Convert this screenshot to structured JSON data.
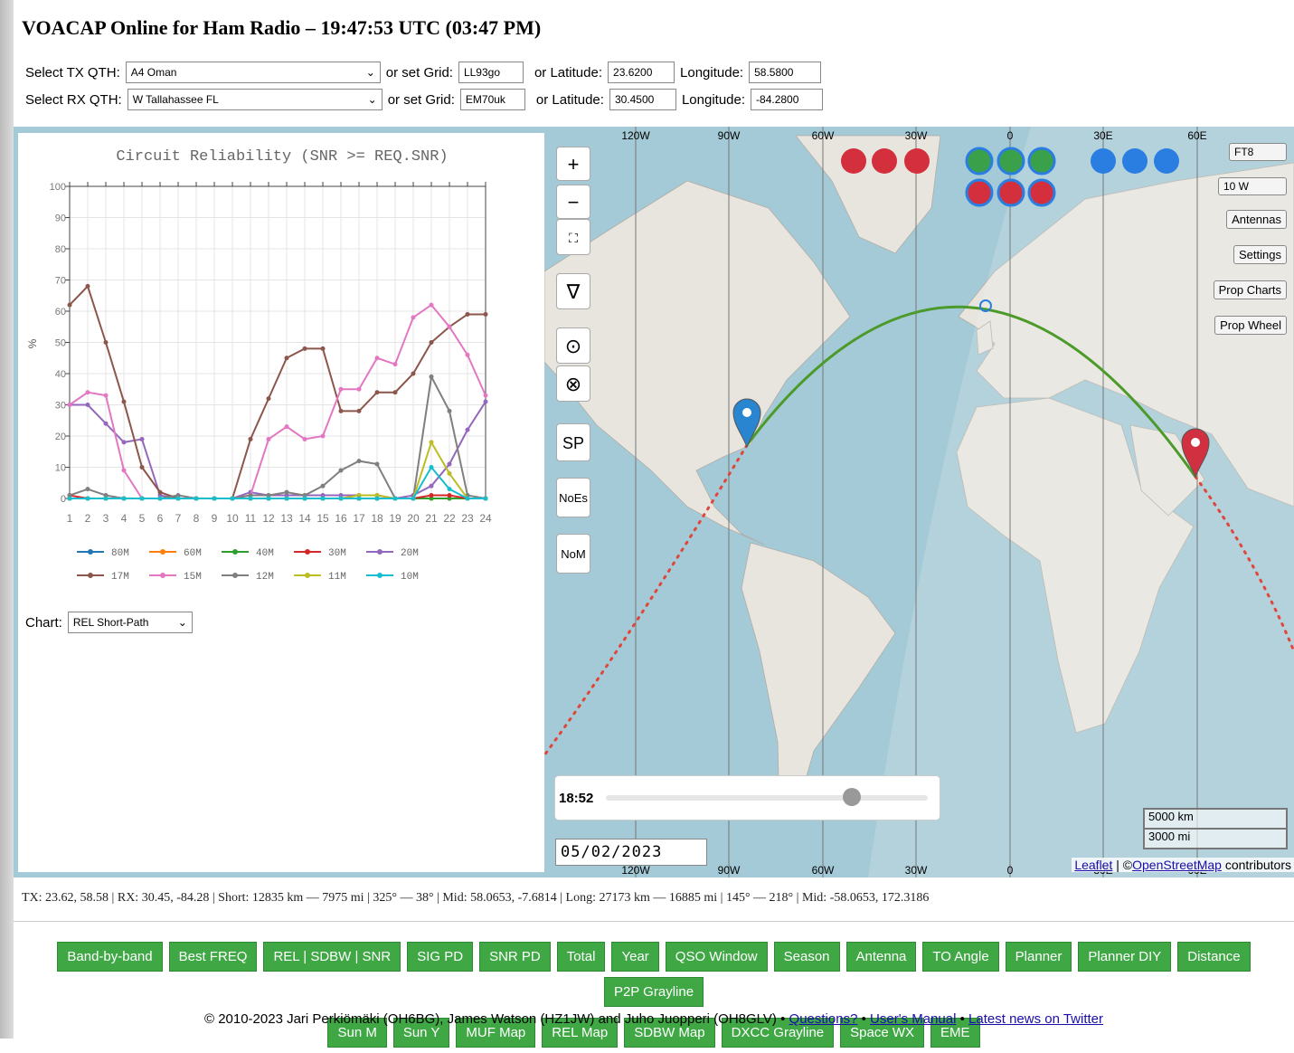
{
  "header": {
    "title": "VOACAP Online for Ham Radio – 19:47:53 UTC (03:47 PM)"
  },
  "qth": [
    {
      "label": "Select TX QTH:",
      "location": "A4 Oman",
      "grid_label": "or set Grid:",
      "grid": "LL93go",
      "lat_label": "or Latitude:",
      "lat": "23.6200",
      "lon_label": "Longitude:",
      "lon": "58.5800"
    },
    {
      "label": "Select RX QTH:",
      "location": "W Tallahassee FL",
      "grid_label": "or set Grid:",
      "grid": "EM70uk",
      "lat_label": "or Latitude:",
      "lat": "30.4500",
      "lon_label": "Longitude:",
      "lon": "-84.2800"
    }
  ],
  "chart_data": {
    "type": "line",
    "title": "Circuit Reliability (SNR >= REQ.SNR)",
    "y_label": "%",
    "x": [
      1,
      2,
      3,
      4,
      5,
      6,
      7,
      8,
      9,
      10,
      11,
      12,
      13,
      14,
      15,
      16,
      17,
      18,
      19,
      20,
      21,
      22,
      23,
      24
    ],
    "xlim": [
      1,
      24
    ],
    "xticks": [
      1,
      2,
      3,
      4,
      5,
      6,
      7,
      8,
      9,
      10,
      11,
      12,
      13,
      14,
      15,
      16,
      17,
      18,
      19,
      20,
      21,
      22,
      23,
      24
    ],
    "ylim": [
      0,
      100
    ],
    "yticks": [
      0,
      10,
      20,
      30,
      40,
      50,
      60,
      70,
      80,
      90,
      100
    ],
    "grid": true,
    "series": [
      {
        "name": "80M",
        "color": "#1f77b4",
        "values": [
          0,
          0,
          0,
          0,
          0,
          0,
          0,
          0,
          0,
          0,
          0,
          0,
          0,
          0,
          0,
          0,
          0,
          0,
          0,
          0,
          0,
          0,
          0,
          0
        ]
      },
      {
        "name": "60M",
        "color": "#ff7f0e",
        "values": [
          0,
          0,
          0,
          0,
          0,
          0,
          0,
          0,
          0,
          0,
          0,
          0,
          0,
          0,
          0,
          0,
          0,
          0,
          0,
          0,
          0,
          0,
          0,
          0
        ]
      },
      {
        "name": "40M",
        "color": "#2ca02c",
        "values": [
          0,
          0,
          0,
          0,
          0,
          0,
          0,
          0,
          0,
          0,
          0,
          0,
          0,
          0,
          0,
          0,
          0,
          0,
          0,
          0,
          0,
          0,
          0,
          0
        ]
      },
      {
        "name": "30M",
        "color": "#d62728",
        "values": [
          1,
          0,
          0,
          0,
          0,
          0,
          0,
          0,
          0,
          0,
          0,
          0,
          0,
          0,
          0,
          0,
          0,
          0,
          0,
          0,
          1,
          1,
          0,
          0
        ]
      },
      {
        "name": "20M",
        "color": "#9467bd",
        "values": [
          30,
          30,
          24,
          18,
          19,
          1,
          0,
          0,
          0,
          0,
          2,
          1,
          1,
          1,
          1,
          1,
          1,
          1,
          0,
          1,
          4,
          11,
          22,
          31
        ]
      },
      {
        "name": "17M",
        "color": "#8c564b",
        "values": [
          62,
          68,
          50,
          31,
          10,
          2,
          0,
          0,
          0,
          0,
          19,
          32,
          45,
          48,
          48,
          28,
          28,
          34,
          34,
          40,
          50,
          55,
          59,
          59
        ]
      },
      {
        "name": "15M",
        "color": "#e377c2",
        "values": [
          30,
          34,
          33,
          9,
          0,
          0,
          0,
          0,
          0,
          0,
          1,
          19,
          23,
          19,
          20,
          35,
          35,
          45,
          43,
          58,
          62,
          55,
          46,
          33
        ]
      },
      {
        "name": "12M",
        "color": "#7f7f7f",
        "values": [
          1,
          3,
          1,
          0,
          0,
          0,
          1,
          0,
          0,
          0,
          1,
          1,
          2,
          1,
          4,
          9,
          12,
          11,
          0,
          0,
          39,
          28,
          1,
          0
        ]
      },
      {
        "name": "11M",
        "color": "#bcbd22",
        "values": [
          0,
          0,
          0,
          0,
          0,
          0,
          0,
          0,
          0,
          0,
          0,
          0,
          0,
          0,
          0,
          0,
          1,
          1,
          0,
          0,
          18,
          8,
          0,
          0
        ]
      },
      {
        "name": "10M",
        "color": "#17becf",
        "values": [
          0,
          0,
          0,
          0,
          0,
          0,
          0,
          0,
          0,
          0,
          0,
          0,
          0,
          0,
          0,
          0,
          0,
          0,
          0,
          0,
          10,
          3,
          0,
          0
        ]
      }
    ]
  },
  "chart_selector": {
    "label": "Chart:",
    "value": "REL Short-Path"
  },
  "map": {
    "meridians": [
      "120W",
      "90W",
      "60W",
      "30W",
      "0",
      "30E",
      "60E"
    ],
    "left_controls": [
      "+",
      "−",
      "∇",
      "⊙",
      "⊗",
      "SP",
      "NoEs",
      "NoM"
    ],
    "mode": "FT8",
    "power": "10 W",
    "right_buttons": [
      "Antennas",
      "Settings",
      "Prop Charts",
      "Prop Wheel"
    ],
    "time": "18:52",
    "date": "05/02/2023",
    "scale": [
      "5000 km",
      "3000 mi"
    ],
    "attribution": {
      "leaflet": "Leaflet",
      "sep": "| ©",
      "osm": "OpenStreetMap",
      "suffix": "contributors"
    }
  },
  "status": "TX: 23.62, 58.58 | RX: 30.45, -84.28 | Short: 12835 km — 7975 mi | 325° — 38° | Mid: 58.0653, -7.6814 | Long: 27173 km — 16885 mi | 145° — 218° | Mid: -58.0653, 172.3186",
  "tools": [
    [
      "Band-by-band",
      "Best FREQ",
      "REL | SDBW | SNR",
      "SIG PD",
      "SNR PD",
      "Total",
      "Year",
      "QSO Window",
      "Season",
      "Antenna",
      "TO Angle",
      "Planner",
      "Planner DIY",
      "Distance",
      "P2P Grayline"
    ],
    [
      "Sun M",
      "Sun Y",
      "MUF Map",
      "REL Map",
      "SDBW Map",
      "DXCC Grayline",
      "Space WX",
      "EME"
    ]
  ],
  "footer": {
    "copyright": "© 2010-2023 Jari Perkiömäki (OH6BG), James Watson (HZ1JW) and Juho Juopperi (OH8GLV)",
    "separator": "•",
    "links": [
      "Questions?",
      "User's Manual",
      "Latest news on Twitter"
    ]
  }
}
